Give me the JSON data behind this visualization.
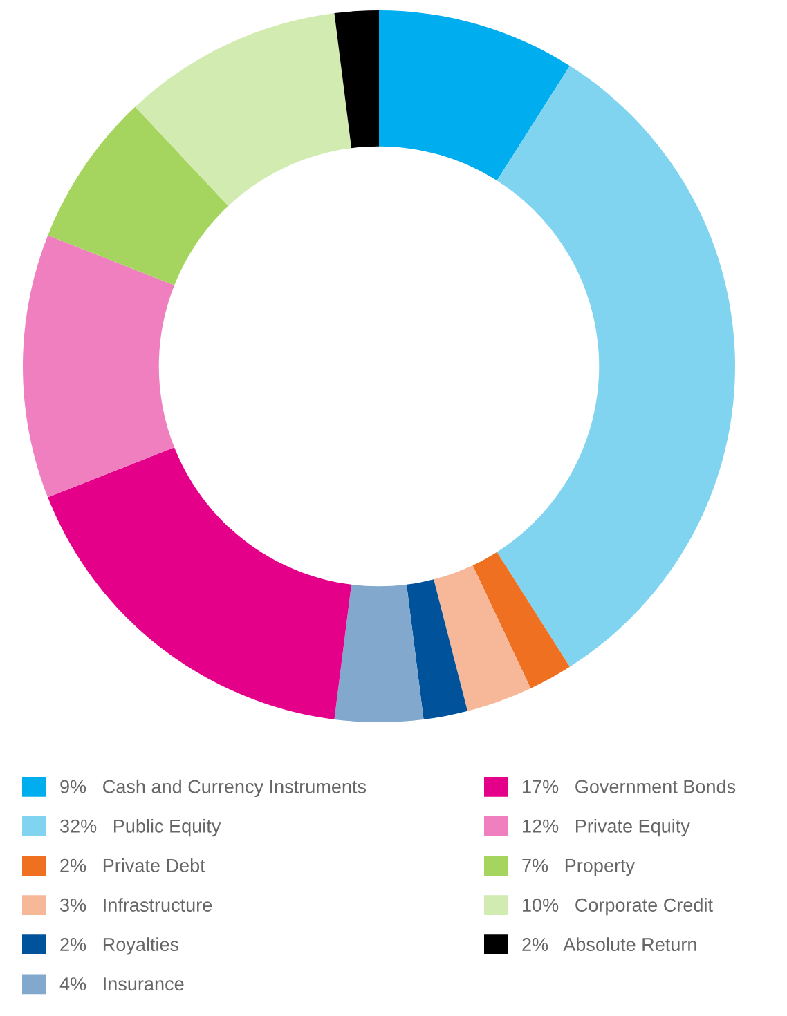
{
  "chart_data": {
    "type": "donut",
    "categories": [
      "Cash and Currency Instruments",
      "Public Equity",
      "Private Debt",
      "Infrastructure",
      "Royalties",
      "Insurance",
      "Government Bonds",
      "Private Equity",
      "Property",
      "Corporate Credit",
      "Absolute Return"
    ],
    "values": [
      9,
      32,
      2,
      3,
      2,
      4,
      17,
      12,
      7,
      10,
      2
    ],
    "colors": [
      "#00aeef",
      "#81d4f0",
      "#f07022",
      "#f7b799",
      "#00529b",
      "#82a8ce",
      "#e5008a",
      "#f07fc0",
      "#a6d55f",
      "#d2ebb1",
      "#000000"
    ],
    "value_labels": [
      "9%",
      "32%",
      "2%",
      "3%",
      "2%",
      "4%",
      "17%",
      "12%",
      "7%",
      "10%",
      "2%"
    ],
    "data_labels": true,
    "legend": "bottom"
  }
}
